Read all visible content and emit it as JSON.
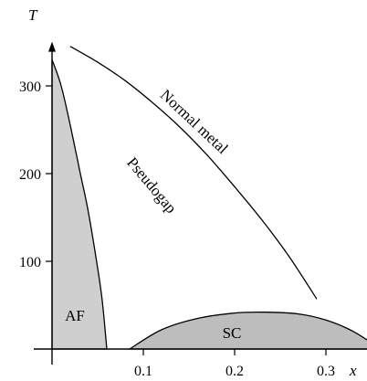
{
  "chart_data": {
    "type": "area",
    "title": "",
    "xlabel": "x",
    "ylabel": "T",
    "xlim": [
      0,
      0.36
    ],
    "ylim": [
      0,
      340
    ],
    "x_ticks": [
      0.1,
      0.2,
      0.3
    ],
    "x_tick_labels": [
      "0.1",
      "0.2",
      "0.3"
    ],
    "y_ticks": [
      100,
      200,
      300
    ],
    "y_tick_labels": [
      "100",
      "200",
      "300"
    ],
    "grid": false,
    "regions": [
      {
        "label": "AF",
        "fill": "#cfcfcf",
        "boundary": {
          "x": [
            0.0,
            0.01,
            0.02,
            0.03,
            0.04,
            0.05,
            0.055,
            0.06
          ],
          "y": [
            330,
            300,
            255,
            205,
            155,
            92,
            55,
            0
          ]
        }
      },
      {
        "label": "SC",
        "fill": "#bdbdbd",
        "boundary": {
          "x": [
            0.085,
            0.12,
            0.16,
            0.2,
            0.235,
            0.27,
            0.3,
            0.33,
            0.36
          ],
          "y": [
            0,
            22,
            35,
            41,
            42,
            40,
            33,
            20,
            0
          ]
        }
      }
    ],
    "series": [
      {
        "name": "Normal metal",
        "x": [
          0.02,
          0.05,
          0.08,
          0.11,
          0.14,
          0.17,
          0.2,
          0.23,
          0.26,
          0.29
        ],
        "y": [
          345,
          327,
          306,
          281,
          253,
          221,
          185,
          147,
          105,
          57
        ]
      }
    ],
    "annotations": [
      {
        "text": "Normal metal",
        "x": 0.152,
        "y": 255,
        "angle": 43
      },
      {
        "text": "Pseudogap",
        "x": 0.105,
        "y": 183,
        "angle": 50
      }
    ]
  }
}
